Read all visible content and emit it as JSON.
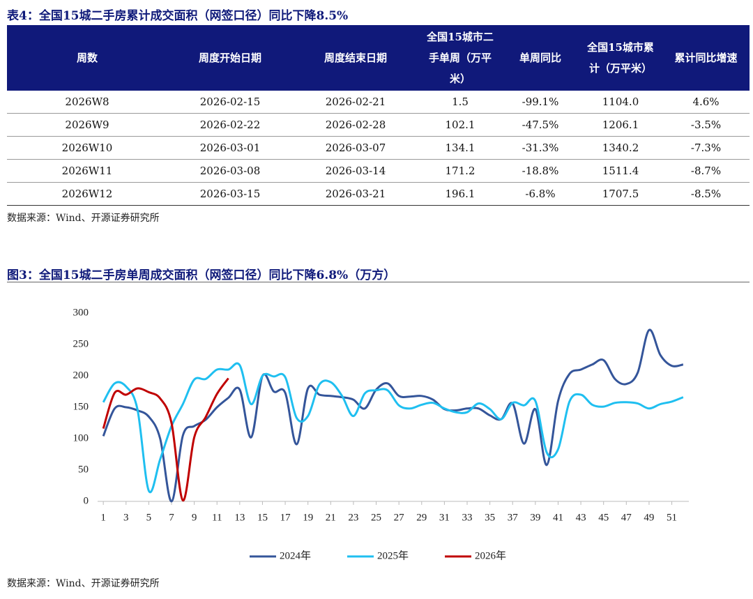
{
  "table": {
    "title": "表4：全国15城二手房累计成交面积（网签口径）同比下降8.5%",
    "columns": [
      "周数",
      "周度开始日期",
      "周度结束日期",
      "全国15城市二手单周（万平米）",
      "单周同比",
      "全国15城市累计（万平米）",
      "累计同比增速"
    ],
    "rows": [
      [
        "2026W8",
        "2026-02-15",
        "2026-02-21",
        "1.5",
        "-99.1%",
        "1104.0",
        "4.6%"
      ],
      [
        "2026W9",
        "2026-02-22",
        "2026-02-28",
        "102.1",
        "-47.5%",
        "1206.1",
        "-3.5%"
      ],
      [
        "2026W10",
        "2026-03-01",
        "2026-03-07",
        "134.1",
        "-31.3%",
        "1340.2",
        "-7.3%"
      ],
      [
        "2026W11",
        "2026-03-08",
        "2026-03-14",
        "171.2",
        "-18.8%",
        "1511.4",
        "-8.7%"
      ],
      [
        "2026W12",
        "2026-03-15",
        "2026-03-21",
        "196.1",
        "-6.8%",
        "1707.5",
        "-8.5%"
      ]
    ],
    "source": "数据来源：Wind、开源证券研究所"
  },
  "chart_data": {
    "type": "line",
    "title": "图3：全国15城二手房单周成交面积（网签口径）同比下降6.8%（万方）",
    "x": [
      1,
      2,
      3,
      4,
      5,
      6,
      7,
      8,
      9,
      10,
      11,
      12,
      13,
      14,
      15,
      16,
      17,
      18,
      19,
      20,
      21,
      22,
      23,
      24,
      25,
      26,
      27,
      28,
      29,
      30,
      31,
      32,
      33,
      34,
      35,
      36,
      37,
      38,
      39,
      40,
      41,
      42,
      43,
      44,
      45,
      46,
      47,
      48,
      49,
      50,
      51,
      52
    ],
    "xlim": [
      0.5,
      52.5
    ],
    "xticks": [
      1,
      3,
      5,
      7,
      9,
      11,
      13,
      15,
      17,
      19,
      21,
      23,
      25,
      27,
      29,
      31,
      33,
      35,
      37,
      39,
      41,
      43,
      45,
      47,
      49,
      51
    ],
    "ylim": [
      0,
      300
    ],
    "yticks": [
      0,
      50,
      100,
      150,
      200,
      250,
      300
    ],
    "grid": false,
    "legend": "bottom",
    "series": [
      {
        "name": "2024年",
        "color": "#34559a",
        "values": [
          104,
          148,
          150,
          145,
          135,
          100,
          0,
          105,
          120,
          130,
          150,
          165,
          178,
          102,
          200,
          175,
          173,
          91,
          180,
          170,
          168,
          166,
          162,
          148,
          178,
          188,
          168,
          167,
          168,
          162,
          147,
          145,
          148,
          148,
          137,
          131,
          156,
          92,
          147,
          58,
          160,
          203,
          210,
          218,
          225,
          195,
          187,
          205,
          273,
          233,
          216,
          218
        ]
      },
      {
        "name": "2025年",
        "color": "#1fbff0",
        "values": [
          158,
          188,
          183,
          147,
          17,
          67,
          120,
          155,
          194,
          195,
          210,
          210,
          217,
          155,
          200,
          199,
          198,
          133,
          136,
          186,
          190,
          168,
          136,
          172,
          177,
          177,
          153,
          148,
          154,
          157,
          148,
          142,
          142,
          156,
          147,
          131,
          157,
          153,
          160,
          78,
          83,
          159,
          170,
          154,
          151,
          157,
          158,
          156,
          148,
          155,
          159,
          166
        ]
      },
      {
        "name": "2026年",
        "color": "#c00000",
        "values": [
          116,
          173,
          170,
          180,
          174,
          164,
          125,
          1.5,
          102.1,
          134.1,
          171.2,
          196.1,
          null,
          null,
          null,
          null,
          null,
          null,
          null,
          null,
          null,
          null,
          null,
          null,
          null,
          null,
          null,
          null,
          null,
          null,
          null,
          null,
          null,
          null,
          null,
          null,
          null,
          null,
          null,
          null,
          null,
          null,
          null,
          null,
          null,
          null,
          null,
          null,
          null,
          null,
          null,
          null
        ]
      }
    ],
    "source": "数据来源：Wind、开源证券研究所"
  }
}
